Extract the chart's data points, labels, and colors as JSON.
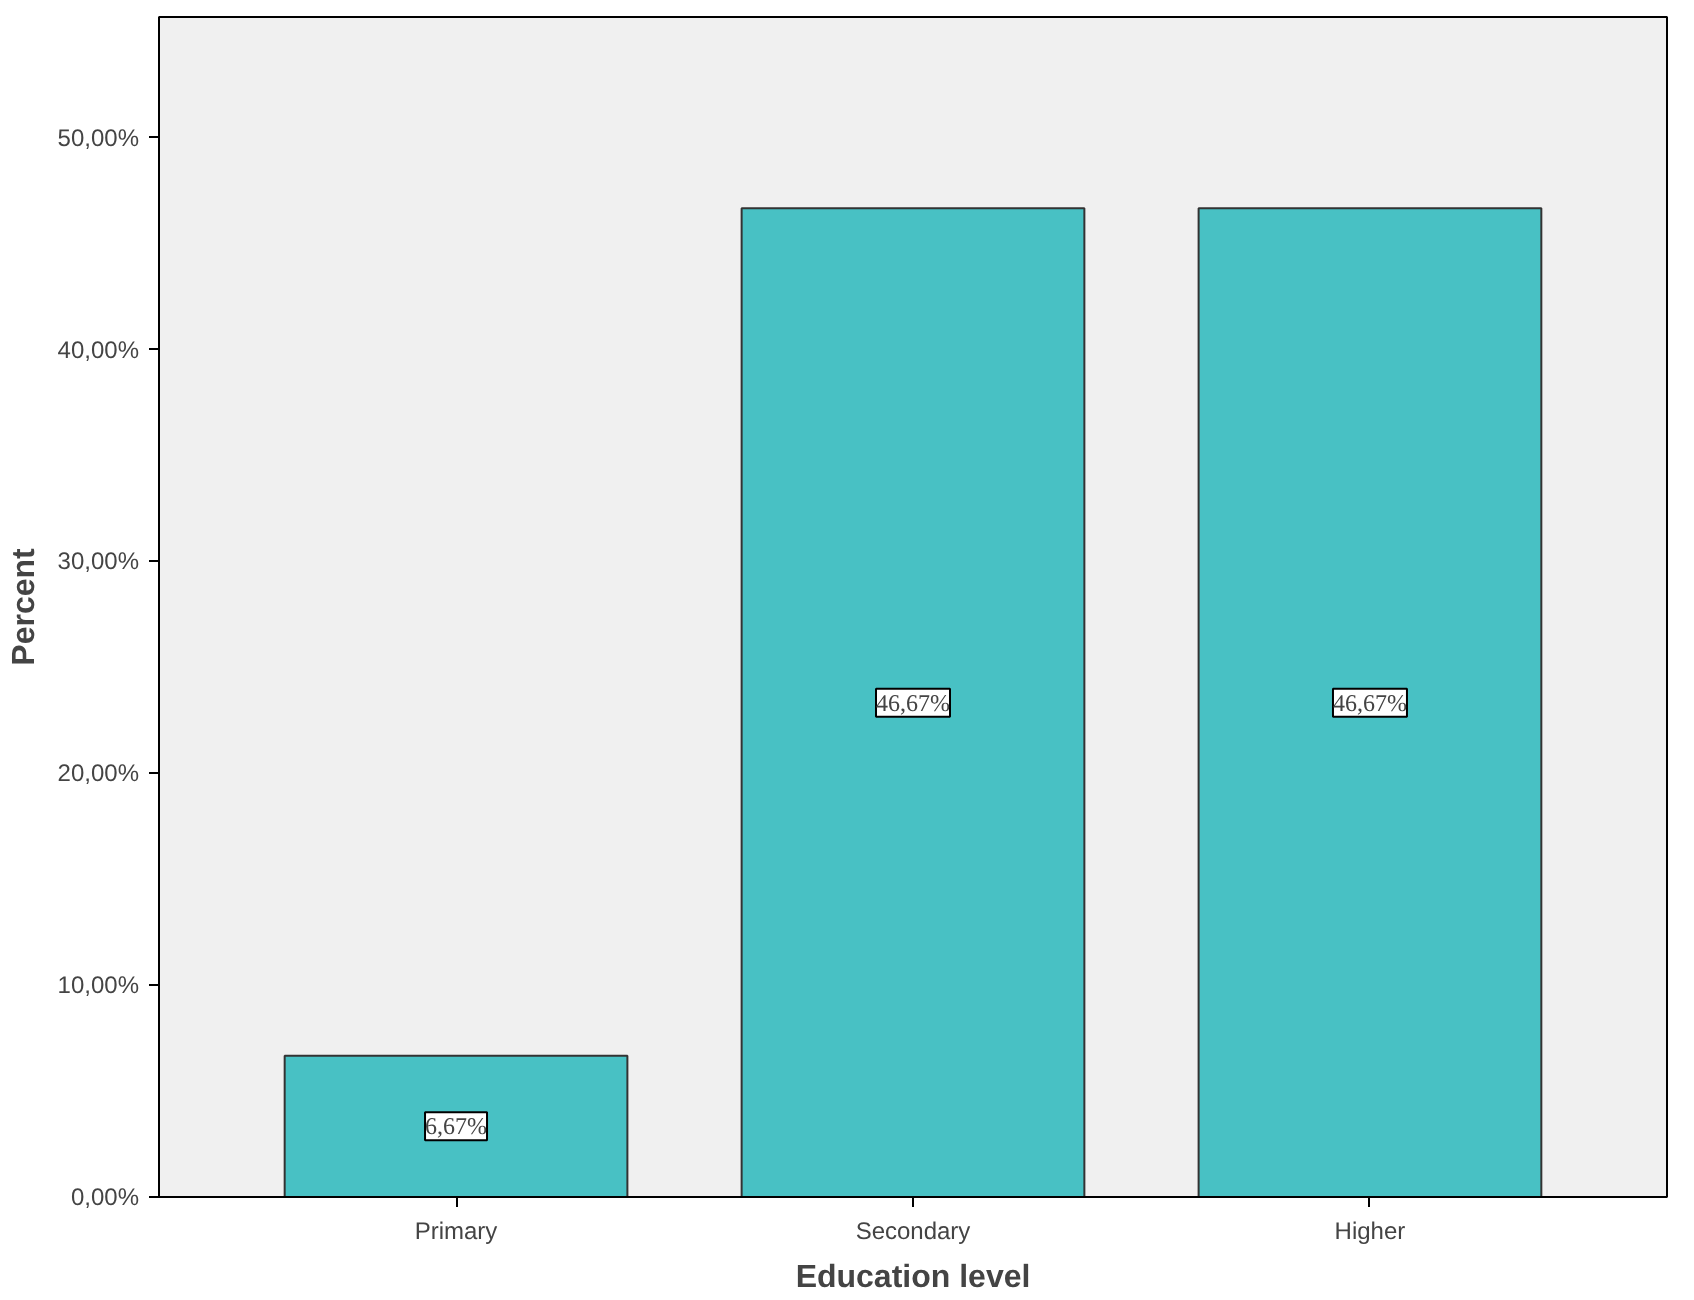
{
  "chart_data": {
    "type": "bar",
    "xlabel": "Education level",
    "ylabel": "Percent",
    "categories": [
      "Primary",
      "Secondary",
      "Higher"
    ],
    "values": [
      6.67,
      46.67,
      46.67
    ],
    "value_labels": [
      "6,67%",
      "46,67%",
      "46,67%"
    ],
    "color": "#48c1c4",
    "ylim": [
      0,
      55.7
    ],
    "yticks": [
      {
        "value": 0,
        "label": "0,00%"
      },
      {
        "value": 10,
        "label": "10,00%"
      },
      {
        "value": 20,
        "label": "20,00%"
      },
      {
        "value": 30,
        "label": "30,00%"
      },
      {
        "value": 40,
        "label": "40,00%"
      },
      {
        "value": 50,
        "label": "50,00%"
      }
    ],
    "grid": false
  }
}
